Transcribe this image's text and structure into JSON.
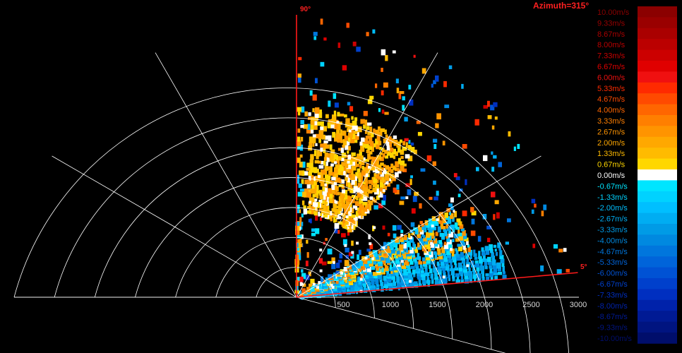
{
  "chart_data": {
    "type": "polar-sector-heatmap",
    "title": "Azimuth=315°",
    "elevation_range_deg": [
      5,
      90
    ],
    "range_ticks": [
      "500",
      "1000",
      "1500",
      "2000",
      "2500",
      "3000"
    ],
    "range_max": 3000,
    "angle_labels": {
      "start": "5°",
      "end": "90°"
    },
    "legend": {
      "labels": [
        "10.00m/s",
        "9.33m/s",
        "8.67m/s",
        "8.00m/s",
        "7.33m/s",
        "6.67m/s",
        "6.00m/s",
        "5.33m/s",
        "4.67m/s",
        "4.00m/s",
        "3.33m/s",
        "2.67m/s",
        "2.00m/s",
        "1.33m/s",
        "0.67m/s",
        "0.00m/s",
        "-0.67m/s",
        "-1.33m/s",
        "-2.00m/s",
        "-2.67m/s",
        "-3.33m/s",
        "-4.00m/s",
        "-4.67m/s",
        "-5.33m/s",
        "-6.00m/s",
        "-6.67m/s",
        "-7.33m/s",
        "-8.00m/s",
        "-8.67m/s",
        "-9.33m/s",
        "-10.00m/s"
      ],
      "colors": [
        "#8b0000",
        "#9a0000",
        "#aa0000",
        "#bb0000",
        "#cc0000",
        "#e00000",
        "#f01010",
        "#ff2a00",
        "#ff4a00",
        "#ff6600",
        "#ff7f00",
        "#ff9400",
        "#ffa800",
        "#ffbb00",
        "#ffd700",
        "#ffffff",
        "#00e5ff",
        "#00d2ff",
        "#00bfff",
        "#00adf2",
        "#009be6",
        "#0089e0",
        "#0076dd",
        "#0064da",
        "#0052d4",
        "#0040cc",
        "#002fc0",
        "#0022aa",
        "#001a94",
        "#001480",
        "#000e6b"
      ],
      "label_colors": [
        "#8b0000",
        "#9a0000",
        "#aa0000",
        "#bb0000",
        "#cc0000",
        "#e00000",
        "#f01010",
        "#ff2a00",
        "#ff4a00",
        "#ff6600",
        "#ff7f00",
        "#ff9400",
        "#ffa800",
        "#ffbb00",
        "#ffd700",
        "#ffffff",
        "#00e5ff",
        "#00d2ff",
        "#00bfff",
        "#00adf2",
        "#009be6",
        "#0089e0",
        "#0076dd",
        "#0064da",
        "#0052d4",
        "#0040cc",
        "#002fc0",
        "#0022aa",
        "#001a94",
        "#001480",
        "#000e6b"
      ]
    }
  }
}
